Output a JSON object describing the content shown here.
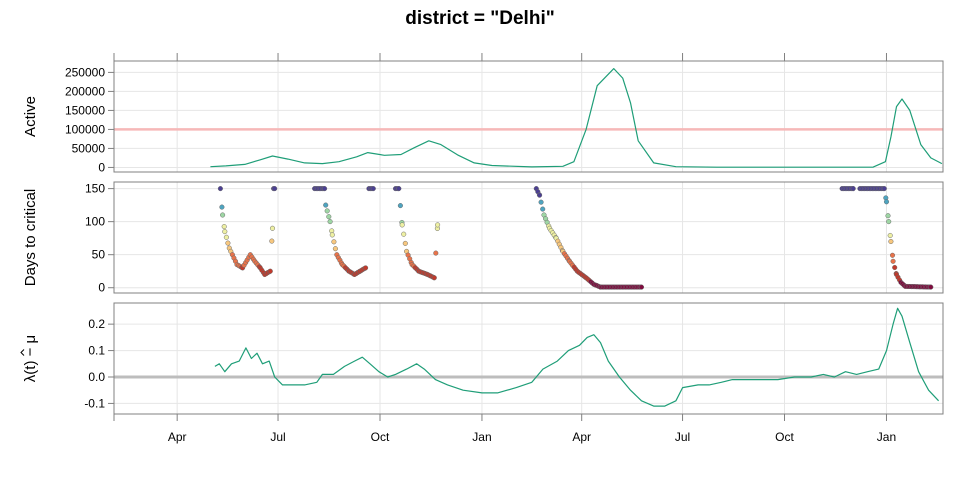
{
  "title": "district = \"Delhi\"",
  "colors": {
    "line": "#1f9e78",
    "active_threshold": "#f6b8b8",
    "zero_line": "#bdbdbd",
    "point_stroke": "#6b6b6b",
    "palette_low_to_high": [
      "#7f0a3e",
      "#c1392b",
      "#e8734a",
      "#f7c77e",
      "#eef0a3",
      "#9ed6a4",
      "#4ea4c0",
      "#4b3f92"
    ]
  },
  "chart_data": [
    {
      "name": "active-panel",
      "type": "line",
      "ylabel": "Active",
      "yticks": [
        0,
        50000,
        100000,
        150000,
        200000,
        250000
      ],
      "ylim": [
        -12000,
        280000
      ],
      "threshold": 100000,
      "grid": true,
      "points": [
        [
          "2020-05-01",
          2000
        ],
        [
          "2020-05-15",
          4000
        ],
        [
          "2020-06-01",
          8000
        ],
        [
          "2020-06-15",
          20000
        ],
        [
          "2020-06-26",
          30000
        ],
        [
          "2020-07-10",
          22000
        ],
        [
          "2020-07-25",
          12000
        ],
        [
          "2020-08-10",
          10000
        ],
        [
          "2020-08-25",
          15000
        ],
        [
          "2020-09-10",
          28000
        ],
        [
          "2020-09-20",
          39000
        ],
        [
          "2020-10-05",
          32000
        ],
        [
          "2020-10-20",
          34000
        ],
        [
          "2020-11-01",
          52000
        ],
        [
          "2020-11-14",
          70000
        ],
        [
          "2020-11-25",
          60000
        ],
        [
          "2020-12-10",
          33000
        ],
        [
          "2020-12-25",
          12000
        ],
        [
          "2021-01-10",
          5000
        ],
        [
          "2021-02-15",
          1500
        ],
        [
          "2021-03-15",
          3000
        ],
        [
          "2021-03-25",
          15000
        ],
        [
          "2021-04-05",
          100000
        ],
        [
          "2021-04-15",
          215000
        ],
        [
          "2021-04-30",
          260000
        ],
        [
          "2021-05-08",
          235000
        ],
        [
          "2021-05-15",
          170000
        ],
        [
          "2021-05-22",
          70000
        ],
        [
          "2021-06-05",
          12000
        ],
        [
          "2021-06-25",
          2000
        ],
        [
          "2021-08-01",
          500
        ],
        [
          "2021-12-01",
          500
        ],
        [
          "2021-12-20",
          800
        ],
        [
          "2021-12-31",
          15000
        ],
        [
          "2022-01-05",
          80000
        ],
        [
          "2022-01-10",
          160000
        ],
        [
          "2022-01-15",
          180000
        ],
        [
          "2022-01-22",
          150000
        ],
        [
          "2022-02-01",
          60000
        ],
        [
          "2022-02-10",
          25000
        ],
        [
          "2022-02-20",
          10000
        ]
      ]
    },
    {
      "name": "days-panel",
      "type": "scatter",
      "ylabel": "Days to critical",
      "yticks": [
        0,
        50,
        100,
        150
      ],
      "ylim": [
        -8,
        160
      ],
      "grid": true,
      "segments": [
        [
          [
            "2020-05-10",
            150
          ],
          [
            "2020-05-12",
            110
          ],
          [
            "2020-05-14",
            85
          ],
          [
            "2020-05-18",
            60
          ],
          [
            "2020-05-25",
            35
          ],
          [
            "2020-05-30",
            30
          ],
          [
            "2020-06-06",
            50
          ],
          [
            "2020-06-10",
            40
          ],
          [
            "2020-06-15",
            30
          ],
          [
            "2020-06-19",
            20
          ],
          [
            "2020-06-24",
            25
          ],
          [
            "2020-06-26",
            90
          ]
        ],
        [
          [
            "2020-06-27",
            150
          ],
          [
            "2020-06-28",
            150
          ]
        ],
        [
          [
            "2020-08-03",
            150
          ],
          [
            "2020-08-12",
            150
          ],
          [
            "2020-08-13",
            125
          ],
          [
            "2020-08-17",
            100
          ],
          [
            "2020-08-19",
            80
          ],
          [
            "2020-08-23",
            50
          ],
          [
            "2020-08-28",
            35
          ],
          [
            "2020-09-03",
            25
          ],
          [
            "2020-09-08",
            20
          ],
          [
            "2020-09-13",
            25
          ],
          [
            "2020-09-18",
            30
          ]
        ],
        [
          [
            "2020-09-21",
            150
          ],
          [
            "2020-09-25",
            150
          ]
        ],
        [
          [
            "2020-10-15",
            150
          ],
          [
            "2020-10-18",
            150
          ],
          [
            "2020-10-21",
            95
          ],
          [
            "2020-10-25",
            55
          ],
          [
            "2020-10-30",
            35
          ],
          [
            "2020-11-05",
            25
          ],
          [
            "2020-11-13",
            20
          ],
          [
            "2020-11-19",
            15
          ],
          [
            "2020-11-22",
            95
          ]
        ],
        [
          [
            "2021-02-19",
            150
          ],
          [
            "2021-02-22",
            140
          ],
          [
            "2021-02-26",
            110
          ],
          [
            "2021-03-03",
            90
          ],
          [
            "2021-03-09",
            75
          ],
          [
            "2021-03-15",
            55
          ],
          [
            "2021-03-21",
            40
          ],
          [
            "2021-03-28",
            25
          ],
          [
            "2021-04-05",
            15
          ],
          [
            "2021-04-12",
            5
          ],
          [
            "2021-04-18",
            1
          ],
          [
            "2021-05-25",
            1
          ]
        ],
        [
          [
            "2021-11-22",
            150
          ],
          [
            "2021-12-02",
            150
          ]
        ],
        [
          [
            "2021-12-08",
            150
          ],
          [
            "2021-12-30",
            150
          ],
          [
            "2022-01-01",
            130
          ],
          [
            "2022-01-03",
            100
          ],
          [
            "2022-01-05",
            70
          ],
          [
            "2022-01-07",
            40
          ],
          [
            "2022-01-10",
            20
          ],
          [
            "2022-01-14",
            8
          ],
          [
            "2022-01-18",
            2
          ],
          [
            "2022-02-10",
            1
          ]
        ]
      ]
    },
    {
      "name": "lambda-panel",
      "type": "line",
      "ylabel": "λ(t) − μ",
      "yticks": [
        -0.1,
        0.0,
        0.1,
        0.2
      ],
      "ytick_labels": [
        "-0.1",
        "0.0",
        "0.1",
        "0.2"
      ],
      "ylim": [
        -0.14,
        0.28
      ],
      "zero_line": 0,
      "grid": true,
      "points": [
        [
          "2020-05-05",
          0.04
        ],
        [
          "2020-05-09",
          0.05
        ],
        [
          "2020-05-14",
          0.02
        ],
        [
          "2020-05-20",
          0.05
        ],
        [
          "2020-05-27",
          0.06
        ],
        [
          "2020-06-02",
          0.11
        ],
        [
          "2020-06-07",
          0.07
        ],
        [
          "2020-06-12",
          0.09
        ],
        [
          "2020-06-17",
          0.05
        ],
        [
          "2020-06-23",
          0.06
        ],
        [
          "2020-06-28",
          0.0
        ],
        [
          "2020-07-05",
          -0.03
        ],
        [
          "2020-07-15",
          -0.03
        ],
        [
          "2020-07-25",
          -0.03
        ],
        [
          "2020-08-05",
          -0.02
        ],
        [
          "2020-08-10",
          0.01
        ],
        [
          "2020-08-20",
          0.01
        ],
        [
          "2020-08-30",
          0.04
        ],
        [
          "2020-09-08",
          0.06
        ],
        [
          "2020-09-15",
          0.075
        ],
        [
          "2020-09-22",
          0.05
        ],
        [
          "2020-09-30",
          0.02
        ],
        [
          "2020-10-08",
          0.0
        ],
        [
          "2020-10-15",
          0.01
        ],
        [
          "2020-10-25",
          0.03
        ],
        [
          "2020-11-03",
          0.05
        ],
        [
          "2020-11-10",
          0.03
        ],
        [
          "2020-11-20",
          -0.01
        ],
        [
          "2020-12-01",
          -0.03
        ],
        [
          "2020-12-15",
          -0.05
        ],
        [
          "2021-01-01",
          -0.06
        ],
        [
          "2021-01-15",
          -0.06
        ],
        [
          "2021-02-01",
          -0.04
        ],
        [
          "2021-02-15",
          -0.02
        ],
        [
          "2021-02-25",
          0.03
        ],
        [
          "2021-03-10",
          0.06
        ],
        [
          "2021-03-20",
          0.1
        ],
        [
          "2021-03-30",
          0.12
        ],
        [
          "2021-04-06",
          0.15
        ],
        [
          "2021-04-12",
          0.16
        ],
        [
          "2021-04-18",
          0.13
        ],
        [
          "2021-04-25",
          0.06
        ],
        [
          "2021-05-05",
          0.0
        ],
        [
          "2021-05-15",
          -0.05
        ],
        [
          "2021-05-25",
          -0.09
        ],
        [
          "2021-06-05",
          -0.11
        ],
        [
          "2021-06-15",
          -0.11
        ],
        [
          "2021-06-25",
          -0.09
        ],
        [
          "2021-07-01",
          -0.04
        ],
        [
          "2021-07-15",
          -0.03
        ],
        [
          "2021-07-25",
          -0.03
        ],
        [
          "2021-08-05",
          -0.02
        ],
        [
          "2021-08-15",
          -0.01
        ],
        [
          "2021-08-25",
          -0.01
        ],
        [
          "2021-09-10",
          -0.01
        ],
        [
          "2021-09-25",
          -0.01
        ],
        [
          "2021-10-10",
          0.0
        ],
        [
          "2021-10-25",
          0.0
        ],
        [
          "2021-11-05",
          0.01
        ],
        [
          "2021-11-15",
          0.0
        ],
        [
          "2021-11-25",
          0.02
        ],
        [
          "2021-12-05",
          0.01
        ],
        [
          "2021-12-15",
          0.02
        ],
        [
          "2021-12-25",
          0.03
        ],
        [
          "2022-01-01",
          0.1
        ],
        [
          "2022-01-07",
          0.2
        ],
        [
          "2022-01-11",
          0.26
        ],
        [
          "2022-01-15",
          0.23
        ],
        [
          "2022-01-22",
          0.13
        ],
        [
          "2022-01-30",
          0.02
        ],
        [
          "2022-02-08",
          -0.05
        ],
        [
          "2022-02-17",
          -0.09
        ]
      ]
    }
  ],
  "x_axis": {
    "xlim": [
      "2020-02-04",
      "2022-02-21"
    ],
    "ticks": [
      {
        "date": "2020-04-01",
        "label": "Apr"
      },
      {
        "date": "2020-07-01",
        "label": "Jul"
      },
      {
        "date": "2020-10-01",
        "label": "Oct"
      },
      {
        "date": "2021-01-01",
        "label": "Jan"
      },
      {
        "date": "2021-04-01",
        "label": "Apr"
      },
      {
        "date": "2021-07-01",
        "label": "Jul"
      },
      {
        "date": "2021-10-01",
        "label": "Oct"
      },
      {
        "date": "2022-01-01",
        "label": "Jan"
      }
    ]
  }
}
